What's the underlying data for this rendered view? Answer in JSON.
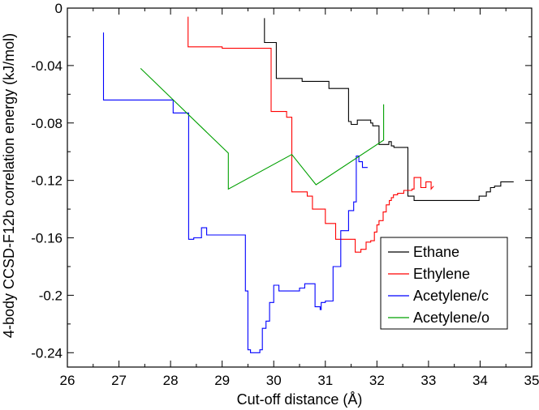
{
  "chart_data": {
    "type": "line",
    "xlabel": "Cut-off distance (Å)",
    "ylabel": "4-body CCSD-F12b correlation energy (kJ/mol)",
    "xlim": [
      26,
      35
    ],
    "ylim": [
      -0.25,
      0
    ],
    "x_ticks": [
      26,
      27,
      28,
      29,
      30,
      31,
      32,
      33,
      34,
      35
    ],
    "x_tick_labels": [
      "26",
      "27",
      "28",
      "29",
      "30",
      "31",
      "32",
      "33",
      "34",
      "35"
    ],
    "y_ticks": [
      0,
      -0.04,
      -0.08,
      -0.12,
      -0.16,
      -0.2,
      -0.24
    ],
    "y_tick_labels": [
      "0",
      "-0.04",
      "-0.08",
      "-0.12",
      "-0.16",
      "-0.2",
      "-0.24"
    ],
    "grid": false,
    "legend_position": "bottom-right",
    "series": [
      {
        "name": "Ethane",
        "color": "#000000",
        "x": [
          29.82,
          29.82,
          30.05,
          30.05,
          30.55,
          30.55,
          31.07,
          31.07,
          31.45,
          31.45,
          31.5,
          31.5,
          31.62,
          31.62,
          31.88,
          31.88,
          31.92,
          31.92,
          32.04,
          32.04,
          32.23,
          32.23,
          32.28,
          32.28,
          32.33,
          32.33,
          32.6,
          32.6,
          32.72,
          32.72,
          33.98,
          33.98,
          34.12,
          34.12,
          34.2,
          34.2,
          34.28,
          34.28,
          34.4,
          34.4,
          34.65
        ],
        "y": [
          -0.007,
          -0.024,
          -0.024,
          -0.049,
          -0.049,
          -0.051,
          -0.051,
          -0.056,
          -0.056,
          -0.079,
          -0.079,
          -0.081,
          -0.081,
          -0.078,
          -0.078,
          -0.08,
          -0.08,
          -0.082,
          -0.082,
          -0.095,
          -0.095,
          -0.093,
          -0.093,
          -0.096,
          -0.096,
          -0.097,
          -0.097,
          -0.131,
          -0.131,
          -0.134,
          -0.134,
          -0.131,
          -0.131,
          -0.128,
          -0.128,
          -0.125,
          -0.125,
          -0.124,
          -0.124,
          -0.121,
          -0.121
        ]
      },
      {
        "name": "Ethylene",
        "color": "#ff0000",
        "x": [
          28.34,
          28.34,
          29.0,
          29.0,
          29.95,
          29.95,
          30.25,
          30.25,
          30.35,
          30.35,
          30.65,
          30.65,
          30.75,
          30.75,
          31.0,
          31.0,
          31.2,
          31.2,
          31.58,
          31.58,
          31.69,
          31.69,
          31.79,
          31.79,
          31.88,
          31.88,
          31.95,
          31.95,
          32.0,
          32.0,
          32.04,
          32.04,
          32.12,
          32.12,
          32.18,
          32.18,
          32.24,
          32.24,
          32.28,
          32.28,
          32.32,
          32.32,
          32.4,
          32.4,
          32.52,
          32.52,
          32.68,
          32.68,
          32.72,
          32.72,
          32.85,
          32.85,
          32.95,
          32.95,
          33.05,
          33.05,
          33.1
        ],
        "y": [
          -0.006,
          -0.027,
          -0.027,
          -0.028,
          -0.028,
          -0.072,
          -0.072,
          -0.076,
          -0.076,
          -0.128,
          -0.128,
          -0.131,
          -0.131,
          -0.14,
          -0.14,
          -0.15,
          -0.15,
          -0.161,
          -0.161,
          -0.17,
          -0.17,
          -0.168,
          -0.168,
          -0.163,
          -0.163,
          -0.162,
          -0.162,
          -0.156,
          -0.156,
          -0.151,
          -0.151,
          -0.148,
          -0.148,
          -0.142,
          -0.142,
          -0.137,
          -0.137,
          -0.134,
          -0.134,
          -0.132,
          -0.132,
          -0.13,
          -0.13,
          -0.129,
          -0.129,
          -0.127,
          -0.127,
          -0.126,
          -0.126,
          -0.118,
          -0.118,
          -0.125,
          -0.125,
          -0.121,
          -0.121,
          -0.126,
          -0.124
        ]
      },
      {
        "name": "Acetylene/c",
        "color": "#0000ff",
        "x": [
          26.7,
          26.7,
          28.05,
          28.05,
          28.35,
          28.35,
          28.45,
          28.45,
          28.6,
          28.6,
          28.7,
          28.7,
          29.45,
          29.45,
          29.5,
          29.5,
          29.55,
          29.55,
          29.73,
          29.73,
          29.78,
          29.78,
          29.85,
          29.85,
          29.92,
          29.92,
          30.0,
          30.0,
          30.1,
          30.1,
          30.5,
          30.5,
          30.6,
          30.6,
          30.8,
          30.8,
          30.9,
          30.9,
          30.92,
          30.92,
          31.0,
          31.0,
          31.15,
          31.15,
          31.3,
          31.3,
          31.45,
          31.45,
          31.55,
          31.55,
          31.6,
          31.6,
          31.65,
          31.65,
          31.72,
          31.72,
          31.82
        ],
        "y": [
          -0.017,
          -0.064,
          -0.064,
          -0.073,
          -0.073,
          -0.161,
          -0.161,
          -0.16,
          -0.16,
          -0.153,
          -0.153,
          -0.158,
          -0.158,
          -0.197,
          -0.197,
          -0.238,
          -0.238,
          -0.24,
          -0.24,
          -0.238,
          -0.238,
          -0.223,
          -0.223,
          -0.218,
          -0.218,
          -0.205,
          -0.205,
          -0.193,
          -0.193,
          -0.197,
          -0.197,
          -0.195,
          -0.195,
          -0.192,
          -0.192,
          -0.208,
          -0.208,
          -0.21,
          -0.21,
          -0.205,
          -0.205,
          -0.204,
          -0.204,
          -0.18,
          -0.18,
          -0.155,
          -0.155,
          -0.141,
          -0.141,
          -0.135,
          -0.135,
          -0.103,
          -0.103,
          -0.107,
          -0.107,
          -0.111,
          -0.111
        ]
      },
      {
        "name": "Acetylene/o",
        "color": "#00a000",
        "x": [
          27.42,
          29.12,
          29.12,
          30.35,
          30.82,
          32.13,
          32.13
        ],
        "y": [
          -0.042,
          -0.101,
          -0.126,
          -0.102,
          -0.123,
          -0.092,
          -0.067
        ]
      }
    ]
  }
}
